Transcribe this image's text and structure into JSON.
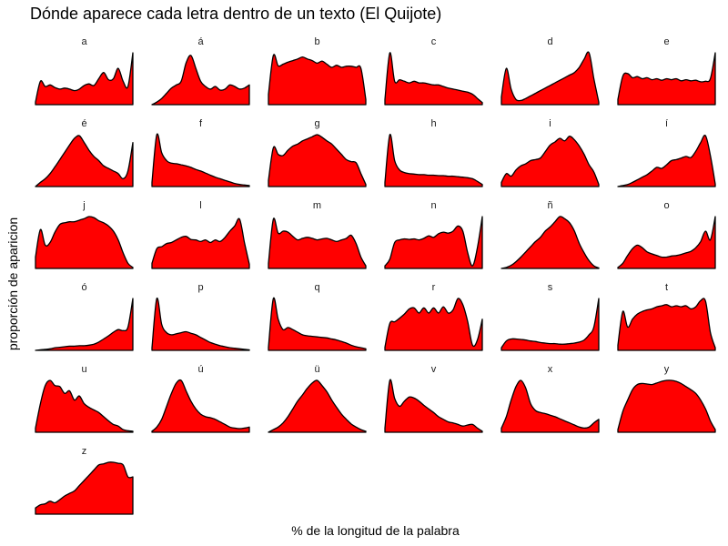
{
  "chart_data": {
    "type": "area",
    "title": "Dónde aparece cada letra dentro de un texto (El Quijote)",
    "xlabel": "% de la longitud de la palabra",
    "ylabel": "proporción de aparicion",
    "fill_color": "#ff0000",
    "line_color": "#000000",
    "facet_columns": 6,
    "x": [
      0,
      0.05,
      0.1,
      0.15,
      0.2,
      0.25,
      0.3,
      0.35,
      0.4,
      0.45,
      0.5,
      0.55,
      0.6,
      0.65,
      0.7,
      0.75,
      0.8,
      0.85,
      0.9,
      0.95,
      1.0
    ],
    "facets": [
      {
        "label": "a",
        "values": [
          0.05,
          0.45,
          0.35,
          0.38,
          0.33,
          0.3,
          0.32,
          0.3,
          0.27,
          0.3,
          0.37,
          0.4,
          0.37,
          0.5,
          0.62,
          0.48,
          0.5,
          0.7,
          0.45,
          0.35,
          1.0
        ]
      },
      {
        "label": "á",
        "values": [
          0.0,
          0.05,
          0.12,
          0.22,
          0.32,
          0.38,
          0.45,
          0.8,
          0.95,
          0.7,
          0.45,
          0.35,
          0.3,
          0.35,
          0.28,
          0.3,
          0.38,
          0.35,
          0.3,
          0.32,
          0.38
        ]
      },
      {
        "label": "b",
        "values": [
          0.2,
          0.95,
          0.75,
          0.78,
          0.82,
          0.85,
          0.88,
          0.92,
          0.88,
          0.85,
          0.8,
          0.84,
          0.78,
          0.72,
          0.76,
          0.72,
          0.74,
          0.74,
          0.72,
          0.7,
          0.1
        ]
      },
      {
        "label": "c",
        "values": [
          0.1,
          1.0,
          0.45,
          0.48,
          0.45,
          0.42,
          0.45,
          0.42,
          0.42,
          0.4,
          0.38,
          0.38,
          0.35,
          0.32,
          0.3,
          0.28,
          0.26,
          0.24,
          0.2,
          0.12,
          0.04
        ]
      },
      {
        "label": "d",
        "values": [
          0.15,
          0.7,
          0.3,
          0.1,
          0.08,
          0.12,
          0.17,
          0.22,
          0.27,
          0.32,
          0.37,
          0.42,
          0.47,
          0.52,
          0.57,
          0.62,
          0.72,
          0.88,
          1.0,
          0.5,
          0.05
        ]
      },
      {
        "label": "e",
        "values": [
          0.1,
          0.55,
          0.6,
          0.52,
          0.54,
          0.5,
          0.52,
          0.48,
          0.5,
          0.47,
          0.5,
          0.48,
          0.5,
          0.46,
          0.48,
          0.46,
          0.47,
          0.44,
          0.45,
          0.5,
          1.0
        ]
      },
      {
        "label": "é",
        "values": [
          0.0,
          0.08,
          0.15,
          0.25,
          0.38,
          0.52,
          0.66,
          0.8,
          0.93,
          0.98,
          0.85,
          0.7,
          0.58,
          0.5,
          0.4,
          0.35,
          0.3,
          0.25,
          0.15,
          0.3,
          0.85
        ]
      },
      {
        "label": "f",
        "values": [
          0.08,
          1.0,
          0.65,
          0.5,
          0.45,
          0.44,
          0.42,
          0.4,
          0.37,
          0.33,
          0.3,
          0.26,
          0.22,
          0.18,
          0.15,
          0.12,
          0.09,
          0.06,
          0.04,
          0.03,
          0.02
        ]
      },
      {
        "label": "g",
        "values": [
          0.12,
          0.75,
          0.62,
          0.6,
          0.7,
          0.78,
          0.82,
          0.88,
          0.92,
          0.96,
          1.0,
          0.95,
          0.88,
          0.82,
          0.72,
          0.62,
          0.52,
          0.48,
          0.46,
          0.25,
          0.04
        ]
      },
      {
        "label": "h",
        "values": [
          0.08,
          1.0,
          0.5,
          0.32,
          0.27,
          0.25,
          0.24,
          0.23,
          0.23,
          0.22,
          0.22,
          0.21,
          0.21,
          0.2,
          0.2,
          0.19,
          0.18,
          0.17,
          0.15,
          0.1,
          0.04
        ]
      },
      {
        "label": "i",
        "values": [
          0.08,
          0.25,
          0.2,
          0.32,
          0.4,
          0.44,
          0.5,
          0.52,
          0.55,
          0.67,
          0.8,
          0.86,
          0.93,
          0.88,
          0.97,
          0.9,
          0.78,
          0.62,
          0.42,
          0.28,
          0.04
        ]
      },
      {
        "label": "í",
        "values": [
          0.0,
          0.02,
          0.04,
          0.08,
          0.13,
          0.18,
          0.23,
          0.3,
          0.37,
          0.35,
          0.42,
          0.5,
          0.52,
          0.55,
          0.58,
          0.56,
          0.68,
          0.85,
          0.98,
          0.6,
          0.05
        ]
      },
      {
        "label": "j",
        "values": [
          0.22,
          0.75,
          0.45,
          0.5,
          0.7,
          0.85,
          0.88,
          0.9,
          0.9,
          0.93,
          0.96,
          1.0,
          0.98,
          0.92,
          0.88,
          0.82,
          0.72,
          0.55,
          0.3,
          0.1,
          0.02
        ]
      },
      {
        "label": "l",
        "values": [
          0.1,
          0.38,
          0.42,
          0.48,
          0.5,
          0.55,
          0.6,
          0.62,
          0.56,
          0.55,
          0.52,
          0.55,
          0.5,
          0.55,
          0.52,
          0.6,
          0.72,
          0.82,
          0.95,
          0.5,
          0.08
        ]
      },
      {
        "label": "m",
        "values": [
          0.1,
          0.95,
          0.68,
          0.72,
          0.7,
          0.62,
          0.55,
          0.58,
          0.6,
          0.58,
          0.55,
          0.57,
          0.58,
          0.55,
          0.52,
          0.55,
          0.58,
          0.64,
          0.48,
          0.22,
          0.05
        ]
      },
      {
        "label": "n",
        "values": [
          0.05,
          0.18,
          0.5,
          0.55,
          0.57,
          0.56,
          0.57,
          0.55,
          0.58,
          0.63,
          0.6,
          0.67,
          0.7,
          0.68,
          0.72,
          0.82,
          0.72,
          0.3,
          0.05,
          0.4,
          1.0
        ]
      },
      {
        "label": "ñ",
        "values": [
          0.0,
          0.02,
          0.06,
          0.13,
          0.22,
          0.32,
          0.42,
          0.52,
          0.6,
          0.72,
          0.8,
          0.9,
          1.0,
          0.96,
          0.88,
          0.72,
          0.48,
          0.3,
          0.15,
          0.05,
          0.01
        ]
      },
      {
        "label": "o",
        "values": [
          0.02,
          0.1,
          0.25,
          0.38,
          0.45,
          0.4,
          0.32,
          0.28,
          0.25,
          0.22,
          0.22,
          0.24,
          0.25,
          0.27,
          0.3,
          0.33,
          0.4,
          0.52,
          0.72,
          0.55,
          1.0
        ]
      },
      {
        "label": "ó",
        "values": [
          0.0,
          0.01,
          0.02,
          0.03,
          0.05,
          0.06,
          0.07,
          0.08,
          0.08,
          0.09,
          0.09,
          0.1,
          0.12,
          0.16,
          0.22,
          0.28,
          0.35,
          0.4,
          0.38,
          0.45,
          1.0
        ]
      },
      {
        "label": "p",
        "values": [
          0.05,
          1.0,
          0.5,
          0.34,
          0.3,
          0.32,
          0.34,
          0.36,
          0.33,
          0.3,
          0.25,
          0.2,
          0.15,
          0.12,
          0.09,
          0.07,
          0.05,
          0.04,
          0.03,
          0.02,
          0.01
        ]
      },
      {
        "label": "q",
        "values": [
          0.06,
          1.0,
          0.6,
          0.4,
          0.44,
          0.4,
          0.35,
          0.3,
          0.28,
          0.27,
          0.26,
          0.25,
          0.24,
          0.22,
          0.2,
          0.17,
          0.14,
          0.1,
          0.07,
          0.05,
          0.03
        ]
      },
      {
        "label": "r",
        "values": [
          0.06,
          0.52,
          0.55,
          0.62,
          0.7,
          0.8,
          0.82,
          0.72,
          0.82,
          0.72,
          0.82,
          0.72,
          0.84,
          0.72,
          0.78,
          1.0,
          0.88,
          0.55,
          0.1,
          0.2,
          0.6
        ]
      },
      {
        "label": "s",
        "values": [
          0.05,
          0.18,
          0.22,
          0.22,
          0.21,
          0.2,
          0.18,
          0.17,
          0.15,
          0.14,
          0.13,
          0.13,
          0.12,
          0.12,
          0.13,
          0.14,
          0.16,
          0.2,
          0.3,
          0.45,
          1.0
        ]
      },
      {
        "label": "t",
        "values": [
          0.1,
          0.75,
          0.45,
          0.6,
          0.7,
          0.75,
          0.78,
          0.8,
          0.84,
          0.86,
          0.88,
          0.84,
          0.86,
          0.84,
          0.86,
          0.8,
          0.84,
          0.96,
          0.95,
          0.35,
          0.05
        ]
      },
      {
        "label": "u",
        "values": [
          0.08,
          0.55,
          0.9,
          1.0,
          0.9,
          0.88,
          0.75,
          0.8,
          0.62,
          0.7,
          0.55,
          0.48,
          0.43,
          0.38,
          0.3,
          0.22,
          0.15,
          0.12,
          0.05,
          0.03,
          0.02
        ]
      },
      {
        "label": "ú",
        "values": [
          0.02,
          0.1,
          0.25,
          0.5,
          0.75,
          0.95,
          1.0,
          0.8,
          0.6,
          0.45,
          0.35,
          0.3,
          0.28,
          0.25,
          0.2,
          0.15,
          0.1,
          0.08,
          0.07,
          0.08,
          0.1
        ]
      },
      {
        "label": "ü",
        "values": [
          0.0,
          0.05,
          0.1,
          0.18,
          0.3,
          0.45,
          0.6,
          0.72,
          0.85,
          0.95,
          1.0,
          0.9,
          0.78,
          0.62,
          0.48,
          0.35,
          0.25,
          0.16,
          0.1,
          0.05,
          0.02
        ]
      },
      {
        "label": "v",
        "values": [
          0.08,
          1.0,
          0.65,
          0.5,
          0.6,
          0.68,
          0.66,
          0.6,
          0.52,
          0.45,
          0.38,
          0.3,
          0.25,
          0.2,
          0.18,
          0.15,
          0.12,
          0.14,
          0.15,
          0.08,
          0.02
        ]
      },
      {
        "label": "x",
        "values": [
          0.08,
          0.3,
          0.62,
          0.88,
          1.0,
          0.85,
          0.55,
          0.42,
          0.38,
          0.36,
          0.33,
          0.3,
          0.26,
          0.22,
          0.18,
          0.14,
          0.1,
          0.08,
          0.1,
          0.18,
          0.25
        ]
      },
      {
        "label": "y",
        "values": [
          0.05,
          0.4,
          0.62,
          0.82,
          0.92,
          0.94,
          0.93,
          0.92,
          0.95,
          0.98,
          1.0,
          1.0,
          0.98,
          0.94,
          0.88,
          0.82,
          0.75,
          0.62,
          0.45,
          0.22,
          0.05
        ]
      },
      {
        "label": "z",
        "values": [
          0.12,
          0.18,
          0.2,
          0.25,
          0.22,
          0.28,
          0.35,
          0.4,
          0.45,
          0.55,
          0.65,
          0.75,
          0.85,
          0.95,
          0.97,
          1.0,
          1.0,
          0.98,
          0.95,
          0.72,
          0.72
        ]
      }
    ]
  }
}
